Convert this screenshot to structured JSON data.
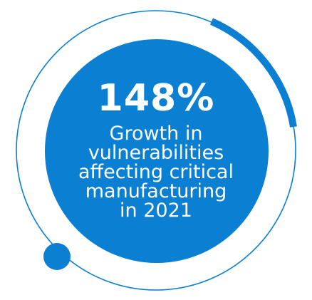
{
  "stat": {
    "value": "148%",
    "caption_lines": [
      "Growth in",
      "vulnerabilities",
      "affecting critical",
      "manufacturing",
      "in 2021"
    ]
  },
  "colors": {
    "primary": "#0b7fd1",
    "thin_ring": "#0b7fd1",
    "text": "#ffffff"
  }
}
